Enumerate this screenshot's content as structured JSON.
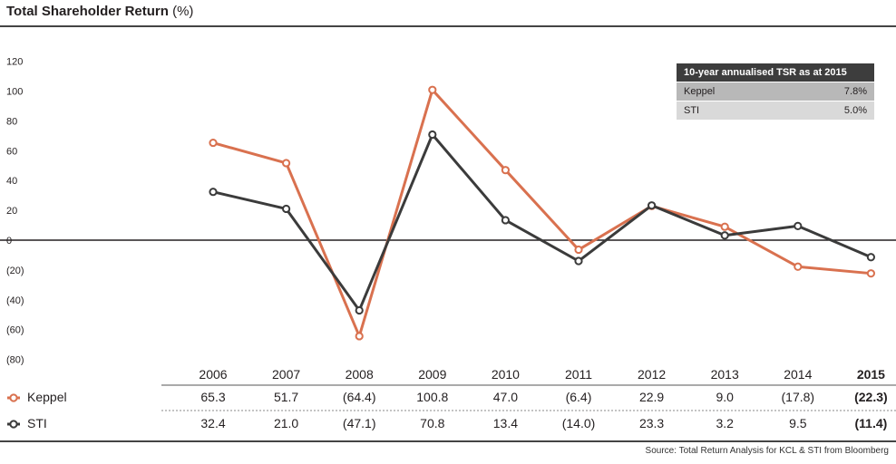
{
  "header": {
    "title": "Total Shareholder Return",
    "unit": "(%)"
  },
  "source": "Source: Total Return Analysis for KCL & STI from Bloomberg",
  "tsr_box": {
    "title": "10-year annualised TSR as at 2015",
    "rows": [
      {
        "label": "Keppel",
        "value": "7.8%"
      },
      {
        "label": "STI",
        "value": "5.0%"
      }
    ]
  },
  "table": {
    "years": [
      "2006",
      "2007",
      "2008",
      "2009",
      "2010",
      "2011",
      "2012",
      "2013",
      "2014",
      "2015"
    ],
    "rows": [
      {
        "label": "Keppel",
        "values": [
          "65.3",
          "51.7",
          "(64.4)",
          "100.8",
          "47.0",
          "(6.4)",
          "22.9",
          "9.0",
          "(17.8)",
          "(22.3)"
        ]
      },
      {
        "label": "STI",
        "values": [
          "32.4",
          "21.0",
          "(47.1)",
          "70.8",
          "13.4",
          "(14.0)",
          "23.3",
          "3.2",
          "9.5",
          "(11.4)"
        ]
      }
    ]
  },
  "chart_data": {
    "type": "line",
    "title": "Total Shareholder Return (%)",
    "x": [
      2006,
      2007,
      2008,
      2009,
      2010,
      2011,
      2012,
      2013,
      2014,
      2015
    ],
    "ylim": [
      -80,
      120
    ],
    "yticks": [
      120,
      100,
      80,
      60,
      40,
      20,
      0,
      -20,
      -40,
      -60,
      -80
    ],
    "ytick_labels": [
      "120",
      "100",
      "80",
      "60",
      "40",
      "20",
      "0",
      "(20)",
      "(40)",
      "(60)",
      "(80)"
    ],
    "series": [
      {
        "name": "Keppel",
        "color": "#d9714f",
        "values": [
          65.3,
          51.7,
          -64.4,
          100.8,
          47.0,
          -6.4,
          22.9,
          9.0,
          -17.8,
          -22.3
        ]
      },
      {
        "name": "STI",
        "color": "#3b3b3b",
        "values": [
          32.4,
          21.0,
          -47.1,
          70.8,
          13.4,
          -14.0,
          23.3,
          3.2,
          9.5,
          -11.4
        ]
      }
    ]
  }
}
